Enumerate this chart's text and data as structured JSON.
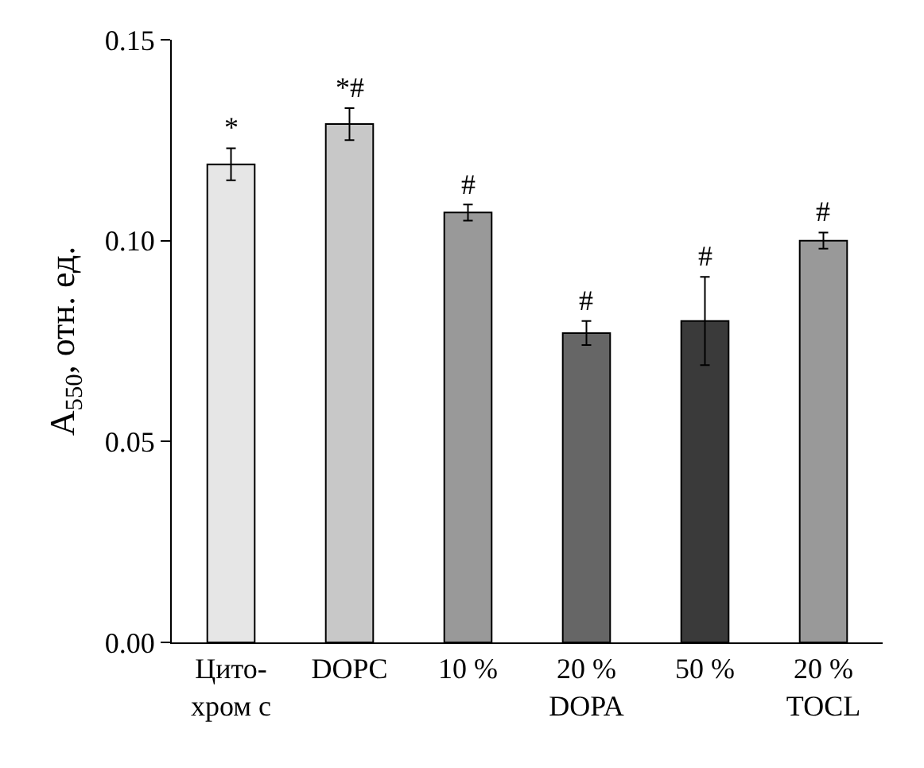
{
  "chart_data": {
    "type": "bar",
    "ylabel": "A$_{550}$, отн. ед.",
    "categories": [
      "Цито-\nхром c",
      "DOPC",
      "10 %",
      "20 %\nDOPA",
      "50 %",
      "20 %\nTOCL"
    ],
    "values": [
      0.119,
      0.129,
      0.107,
      0.077,
      0.08,
      0.1
    ],
    "errors": [
      0.004,
      0.004,
      0.002,
      0.003,
      0.011,
      0.002
    ],
    "colors": [
      "#e6e6e6",
      "#c8c8c8",
      "#999999",
      "#666666",
      "#3a3a3a",
      "#999999"
    ],
    "value_labels": [
      "*",
      "*#",
      "#",
      "#",
      "#",
      "#"
    ],
    "ylim": [
      0,
      0.15
    ],
    "yticks": [
      {
        "value": 0,
        "label": "0.00"
      },
      {
        "value": 0.05,
        "label": "0.05"
      },
      {
        "value": 0.1,
        "label": "0.10"
      },
      {
        "value": 0.15,
        "label": "0.15"
      }
    ],
    "tick_labels": [
      "x",
      "y"
    ]
  }
}
